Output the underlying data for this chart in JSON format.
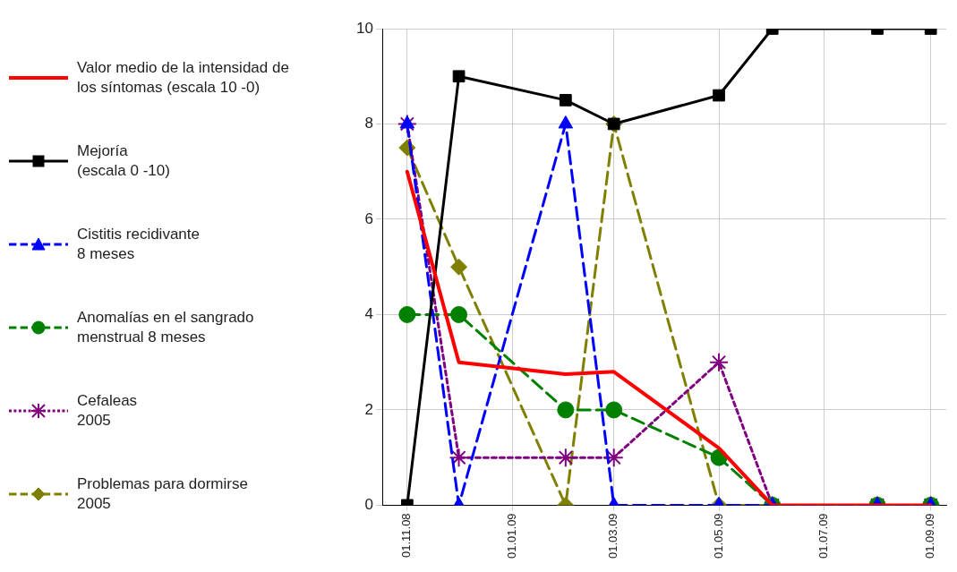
{
  "chart_data": {
    "type": "line",
    "x": [
      "2008-11-01",
      "2008-12-01",
      "2009-02-01",
      "2009-03-01",
      "2009-05-01",
      "2009-06-01",
      "2009-08-01",
      "2009-09-01"
    ],
    "xlim": [
      "2008-10-18",
      "2009-09-10"
    ],
    "xticks": [
      {
        "value": "2008-11-01",
        "label": "01.11.08"
      },
      {
        "value": "2009-01-01",
        "label": "01.01.09"
      },
      {
        "value": "2009-03-01",
        "label": "01.03.09"
      },
      {
        "value": "2009-05-01",
        "label": "01.05.09"
      },
      {
        "value": "2009-07-01",
        "label": "01.07.09"
      },
      {
        "value": "2009-09-01",
        "label": "01.09.09"
      }
    ],
    "ylim": [
      0,
      10
    ],
    "yticks": [
      0,
      2,
      4,
      6,
      8,
      10
    ],
    "grid": true,
    "legend": "left",
    "series": [
      {
        "name": "Valor medio de la intensidad de\nlos síntomas (escala 10 -0)",
        "color": "#ff0000",
        "marker": "none",
        "line_style": "solid",
        "values": [
          7,
          3,
          2.75,
          2.8,
          1.2,
          0,
          0,
          0
        ]
      },
      {
        "name": "Mejoría\n(escala 0 -10)",
        "color": "#000000",
        "marker": "square",
        "line_style": "solid",
        "values": [
          0,
          9,
          8.5,
          8,
          8.6,
          10,
          10,
          10
        ]
      },
      {
        "name": "Cistitis recidivante\n8 meses",
        "color": "#0000ff",
        "marker": "triangle",
        "line_style": "dashed",
        "values": [
          8,
          0,
          8,
          0,
          0,
          0,
          0,
          0
        ]
      },
      {
        "name": "Anomalías en el sangrado\nmenstrual 8 meses",
        "color": "#008000",
        "marker": "circle",
        "line_style": "dashed",
        "values": [
          4,
          4,
          2,
          2,
          1,
          0,
          0,
          0
        ]
      },
      {
        "name": "Cefaleas\n2005",
        "color": "#800080",
        "marker": "cross",
        "line_style": "dotted",
        "values": [
          8,
          1,
          1,
          1,
          3,
          0,
          0,
          0
        ]
      },
      {
        "name": "Problemas para dormirse\n2005",
        "color": "#808000",
        "marker": "diamond",
        "line_style": "dashed",
        "values": [
          7.5,
          5,
          0,
          8,
          0,
          0,
          0,
          0
        ]
      }
    ]
  }
}
